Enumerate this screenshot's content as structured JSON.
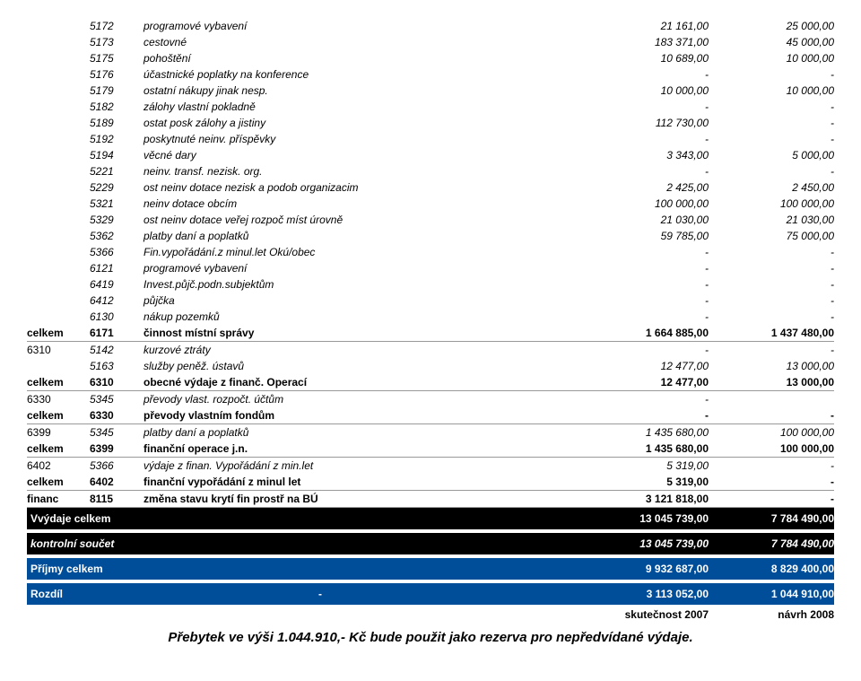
{
  "rows": [
    {
      "code": "5172",
      "desc": "programové vybavení",
      "v1": "21 161,00",
      "v2": "25 000,00",
      "italic": true
    },
    {
      "code": "5173",
      "desc": "cestovné",
      "v1": "183 371,00",
      "v2": "45 000,00",
      "italic": true
    },
    {
      "code": "5175",
      "desc": "pohoštění",
      "v1": "10 689,00",
      "v2": "10 000,00",
      "italic": true
    },
    {
      "code": "5176",
      "desc": "účastnické poplatky na konference",
      "v1": "-",
      "v2": "-",
      "italic": true
    },
    {
      "code": "5179",
      "desc": "ostatní nákupy jinak nesp.",
      "v1": "10 000,00",
      "v2": "10 000,00",
      "italic": true
    },
    {
      "code": "5182",
      "desc": "zálohy vlastní pokladně",
      "v1": "-",
      "v2": "-",
      "italic": true
    },
    {
      "code": "5189",
      "desc": "ostat posk zálohy a jistiny",
      "v1": "112 730,00",
      "v2": "-",
      "italic": true
    },
    {
      "code": "5192",
      "desc": "poskytnuté neinv. příspěvky",
      "v1": "-",
      "v2": "-",
      "italic": true
    },
    {
      "code": "5194",
      "desc": "věcné dary",
      "v1": "3 343,00",
      "v2": "5 000,00",
      "italic": true
    },
    {
      "code": "5221",
      "desc": "neinv. transf. nezisk. org.",
      "v1": "-",
      "v2": "-",
      "italic": true
    },
    {
      "code": "5229",
      "desc": "ost neinv dotace nezisk a podob organizacim",
      "v1": "2 425,00",
      "v2": "2 450,00",
      "italic": true
    },
    {
      "code": "5321",
      "desc": "neinv dotace obcím",
      "v1": "100 000,00",
      "v2": "100 000,00",
      "italic": true
    },
    {
      "code": "5329",
      "desc": "ost neinv dotace veřej rozpoč míst úrovně",
      "v1": "21 030,00",
      "v2": "21 030,00",
      "italic": true
    },
    {
      "code": "5362",
      "desc": "platby daní a poplatků",
      "v1": "59 785,00",
      "v2": "75 000,00",
      "italic": true
    },
    {
      "code": "5366",
      "desc": "Fin.vypořádání.z minul.let Okú/obec",
      "v1": "-",
      "v2": "-",
      "italic": true
    },
    {
      "code": "6121",
      "desc": "programové vybavení",
      "v1": "-",
      "v2": "-",
      "italic": true
    },
    {
      "code": "6419",
      "desc": "Invest.půjč.podn.subjektům",
      "v1": "-",
      "v2": "-",
      "italic": true
    },
    {
      "code": "6412",
      "desc": "půjčka",
      "v1": "-",
      "v2": "-",
      "italic": true
    },
    {
      "code": "6130",
      "desc": "nákup pozemků",
      "v1": "-",
      "v2": "-",
      "italic": true
    },
    {
      "group": "celkem",
      "code": "6171",
      "desc": "činnost místní správy",
      "v1": "1 664 885,00",
      "v2": "1 437 480,00",
      "subtotal": true
    },
    {
      "group": "6310",
      "code": "5142",
      "desc": "kurzové ztráty",
      "v1": "-",
      "v2": "-",
      "italic": true
    },
    {
      "code": "5163",
      "desc": "služby peněž. ústavů",
      "v1": "12 477,00",
      "v2": "13 000,00",
      "italic": true
    },
    {
      "group": "celkem",
      "code": "6310",
      "desc": "obecné výdaje z finanč. Operací",
      "v1": "12 477,00",
      "v2": "13 000,00",
      "subtotal": true
    },
    {
      "group": "6330",
      "code": "5345",
      "desc": "převody vlast. rozpočt. účtům",
      "v1": "-",
      "v2": "",
      "italic": true
    },
    {
      "group": "celkem",
      "code": "6330",
      "desc": "převody vlastním fondům",
      "v1": "-",
      "v2": "-",
      "subtotal": true
    },
    {
      "group": "6399",
      "code": "5345",
      "desc": "platby daní a poplatků",
      "v1": "1 435 680,00",
      "v2": "100 000,00",
      "italic": true
    },
    {
      "group": "celkem",
      "code": "6399",
      "desc": "finanční operace j.n.",
      "v1": "1 435 680,00",
      "v2": "100 000,00",
      "subtotal": true
    },
    {
      "group": "6402",
      "code": "5366",
      "desc": "výdaje z finan. Vypořádání z min.let",
      "v1": "5 319,00",
      "v2": "-",
      "italic": true
    },
    {
      "group": "celkem",
      "code": "6402",
      "desc": "finanční vypořádání z minul let",
      "v1": "5 319,00",
      "v2": "-",
      "subtotal": true
    },
    {
      "group": "financ",
      "code": "8115",
      "desc": "změna stavu krytí fin prostř na BÚ",
      "v1": "3 121 818,00",
      "v2": "-",
      "subtotal": true
    }
  ],
  "summary": [
    {
      "label": "Vvýdaje celkem",
      "v1": "13 045 739,00",
      "v2": "7 784 490,00",
      "style": "black"
    },
    {
      "label": "kontrolní součet",
      "v1": "13 045 739,00",
      "v2": "7 784 490,00",
      "style": "kontrol"
    },
    {
      "label": "Příjmy celkem",
      "v1": "9 932 687,00",
      "v2": "8 829 400,00",
      "style": "blue"
    },
    {
      "label": "Rozdíl",
      "mid": "-",
      "v1": "3 113 052,00",
      "v2": "1 044 910,00",
      "style": "blue"
    }
  ],
  "labels": {
    "l1": "skutečnost 2007",
    "l2": "návrh 2008"
  },
  "footnote": "Přebytek ve výši 1.044.910,- Kč bude použit jako rezerva pro nepředvídané výdaje."
}
